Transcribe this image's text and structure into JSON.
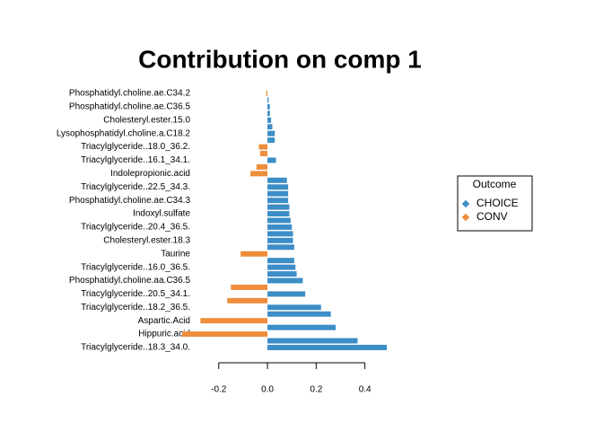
{
  "chart_data": {
    "type": "bar",
    "orientation": "horizontal",
    "title": "Contribution on comp 1",
    "categories": [
      "Phosphatidyl.choline.ae.C34.2",
      null,
      "Phosphatidyl.choline.ae.C36.5",
      null,
      "Cholesteryl.ester.15.0",
      null,
      "Lysophosphatidyl.choline.a.C18.2",
      null,
      "Triacylglyceride..18.0_36.2.",
      null,
      "Triacylglyceride..16.1_34.1.",
      null,
      "Indolepropionic.acid",
      null,
      "Triacylglyceride..22.5_34.3.",
      null,
      "Phosphatidyl.choline.ae.C34.3",
      null,
      "Indoxyl.sulfate",
      null,
      "Triacylglyceride..20.4_36.5.",
      null,
      "Cholesteryl.ester.18.3",
      null,
      "Taurine",
      null,
      "Triacylglyceride..16.0_36.5.",
      null,
      "Phosphatidyl.choline.aa.C36.5",
      null,
      "Triacylglyceride..20.5_34.1.",
      null,
      "Triacylglyceride..18.2_36.5.",
      null,
      "Aspartic.Acid",
      null,
      "Hippuric.acid",
      null,
      "Triacylglyceride..18.3_34.0."
    ],
    "legend_title": "Outcome",
    "series": [
      {
        "name": "CHOICE",
        "color": "#3d8dc6",
        "values": [
          null,
          0.005,
          0.01,
          0.01,
          0.015,
          0.02,
          0.03,
          0.03,
          null,
          null,
          0.035,
          null,
          null,
          0.08,
          0.085,
          0.085,
          0.085,
          0.09,
          0.09,
          0.095,
          0.1,
          0.105,
          0.105,
          0.11,
          null,
          0.11,
          0.115,
          0.12,
          0.145,
          null,
          0.155,
          null,
          0.22,
          0.26,
          null,
          0.28,
          null,
          0.37,
          0.49
        ]
      },
      {
        "name": "CONV",
        "color": "#ee8d3b",
        "values": [
          -0.005,
          null,
          null,
          null,
          null,
          null,
          null,
          null,
          -0.035,
          -0.03,
          null,
          -0.045,
          -0.07,
          null,
          null,
          null,
          null,
          null,
          null,
          null,
          null,
          null,
          null,
          null,
          -0.11,
          null,
          null,
          null,
          null,
          -0.15,
          null,
          -0.165,
          null,
          null,
          -0.275,
          null,
          -0.35,
          null,
          null
        ]
      }
    ],
    "xlim": [
      -0.36,
      0.5
    ],
    "xticks": [
      -0.2,
      {
        "value": 0,
        "label": "0.0"
      },
      0.2,
      0.4
    ]
  }
}
